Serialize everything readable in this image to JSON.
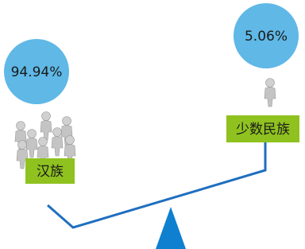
{
  "left": {
    "percent": "94.94%",
    "label": "汉族"
  },
  "right": {
    "percent": "5.06%",
    "label": "少数民族"
  }
}
